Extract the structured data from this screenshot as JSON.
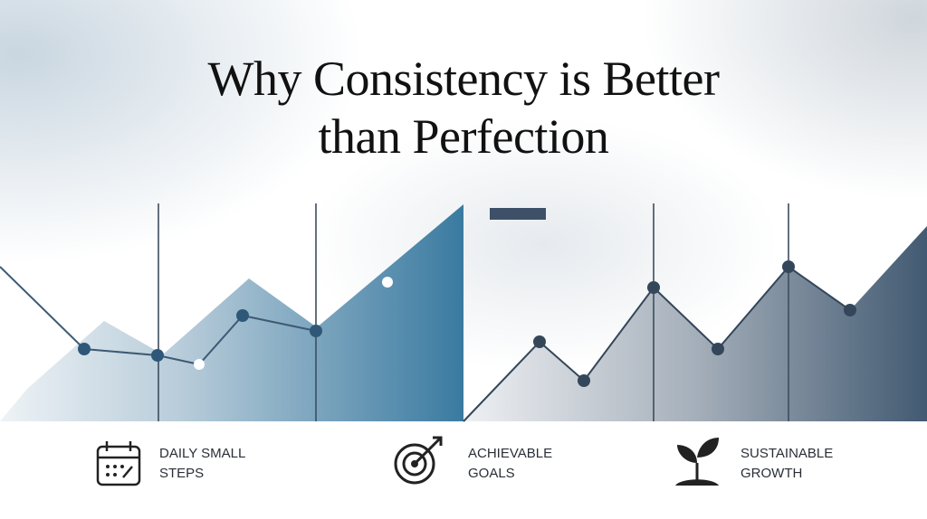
{
  "title": "Why Consistency is Better than Perfection",
  "features": [
    {
      "label": "DAILY SMALL STEPS"
    },
    {
      "label": "ACHIEVABLE GOALS"
    },
    {
      "label": "SUSTAINABLE GROWTH"
    }
  ]
}
